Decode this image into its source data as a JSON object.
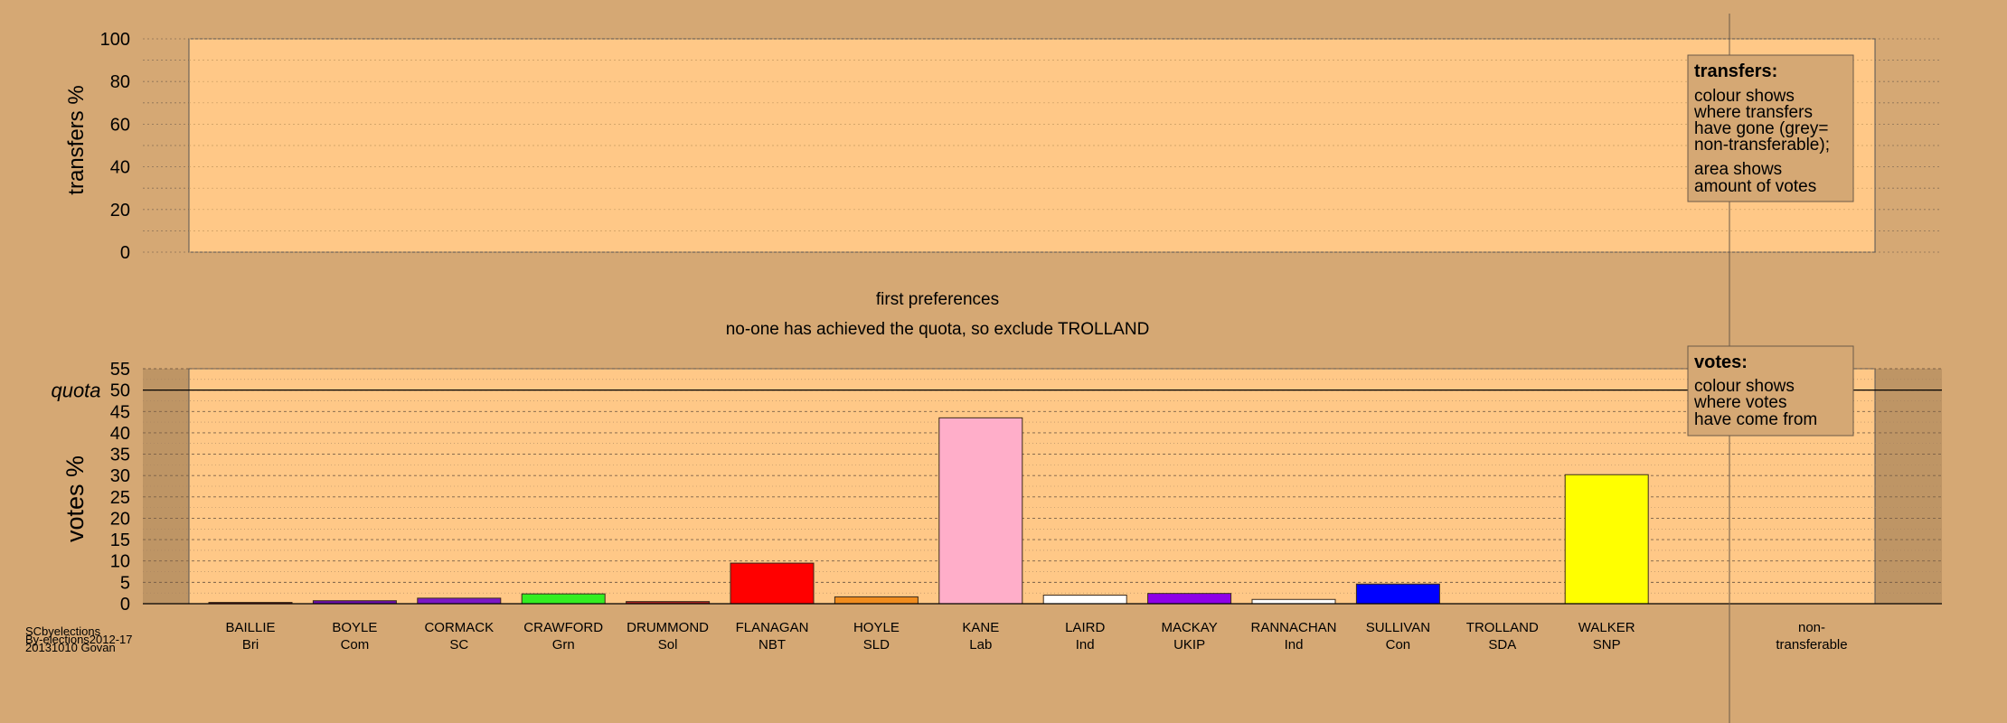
{
  "chart_data": [
    {
      "type": "bar",
      "panel": "transfers",
      "ylabel": "transfers %",
      "ylim": [
        0,
        100
      ],
      "yticks": [
        0,
        20,
        40,
        60,
        80,
        100
      ],
      "grid": "dotted",
      "categories": [],
      "values": [],
      "legend": {
        "title": "transfers:",
        "lines": [
          "colour shows",
          "where transfers",
          "have gone (grey=",
          "non-transferable);",
          "area shows",
          "amount of votes"
        ]
      }
    },
    {
      "type": "bar",
      "panel": "votes",
      "title": "first preferences",
      "subtitle": "no-one has achieved the quota, so exclude TROLLAND",
      "ylabel": "votes %",
      "ylim": [
        0,
        55
      ],
      "yticks": [
        0,
        5,
        10,
        15,
        20,
        25,
        30,
        35,
        40,
        45,
        50,
        55
      ],
      "quota_label": "quota",
      "quota_value": 50,
      "grid": "dotted",
      "categories": [
        {
          "name": "BAILLIE",
          "party": "Bri",
          "color": "#8B1A1A",
          "value": 0.3
        },
        {
          "name": "BOYLE",
          "party": "Com",
          "color": "#6A0DAD",
          "value": 0.7
        },
        {
          "name": "CORMACK",
          "party": "SC",
          "color": "#7B17C6",
          "value": 1.3
        },
        {
          "name": "CRAWFORD",
          "party": "Grn",
          "color": "#33EE22",
          "value": 2.3
        },
        {
          "name": "DRUMMOND",
          "party": "Sol",
          "color": "#B22222",
          "value": 0.5
        },
        {
          "name": "FLANAGAN",
          "party": "NBT",
          "color": "#FF0000",
          "value": 9.5
        },
        {
          "name": "HOYLE",
          "party": "SLD",
          "color": "#F08C1E",
          "value": 1.6
        },
        {
          "name": "KANE",
          "party": "Lab",
          "color": "#FFAEC9",
          "value": 43.5
        },
        {
          "name": "LAIRD",
          "party": "Ind",
          "color": "#FFFFFF",
          "value": 2.0
        },
        {
          "name": "MACKAY",
          "party": "UKIP",
          "color": "#8E00E8",
          "value": 2.4
        },
        {
          "name": "RANNACHAN",
          "party": "Ind",
          "color": "#FFFFFF",
          "value": 1.0
        },
        {
          "name": "SULLIVAN",
          "party": "Con",
          "color": "#0000FF",
          "value": 4.6
        },
        {
          "name": "TROLLAND",
          "party": "SDA",
          "color": "#808080",
          "value": 0.0
        },
        {
          "name": "WALKER",
          "party": "SNP",
          "color": "#FFFF00",
          "value": 30.2
        }
      ],
      "nontransferable": {
        "line1": "non-",
        "line2": "transferable"
      },
      "legend": {
        "title": "votes:",
        "lines": [
          "colour shows",
          "where votes",
          "have come from"
        ]
      }
    }
  ],
  "credits": [
    "SCbyelections",
    "By-elections2012-17",
    "20131010 Govan"
  ]
}
